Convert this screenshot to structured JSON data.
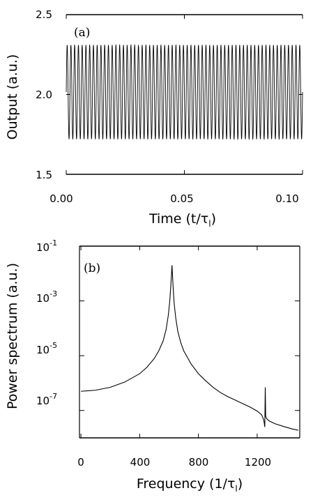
{
  "chart_data": [
    {
      "type": "line",
      "panel_label": "(a)",
      "xlabel_main": "Time (t/τ",
      "xlabel_sub": "l",
      "xlabel_close": ")",
      "ylabel": "Output (a.u.)",
      "xlim": [
        0.0,
        0.1
      ],
      "ylim": [
        1.5,
        2.5
      ],
      "x_ticks": [
        0.0,
        0.05,
        0.1
      ],
      "x_tick_labels": [
        "0.00",
        "0.05",
        "0.10"
      ],
      "y_ticks": [
        1.5,
        2.0,
        2.5
      ],
      "y_tick_labels": [
        "1.5",
        "2.0",
        "2.5"
      ],
      "grid": false,
      "series": [
        {
          "description_of_shape": "sustained periodic oscillation",
          "oscillation_min": 1.72,
          "oscillation_max": 2.31,
          "cycles_in_window": 63,
          "x_range": [
            0.0,
            0.1
          ]
        }
      ]
    },
    {
      "type": "line",
      "panel_label": "(b)",
      "xlabel_main": "Frequency (1/τ",
      "xlabel_sub": "l",
      "xlabel_close": ")",
      "ylabel": "Power spectrum (a.u.)",
      "yscale": "log",
      "xlim": [
        -10,
        1490
      ],
      "ylim": [
        1e-08,
        0.1
      ],
      "x_ticks": [
        0,
        400,
        800,
        1200
      ],
      "x_tick_labels": [
        "0",
        "400",
        "800",
        "1200"
      ],
      "y_ticks": [
        0.1,
        0.001,
        1e-05,
        1e-07
      ],
      "y_tick_labels": [
        {
          "base": "10",
          "exp": "-1"
        },
        {
          "base": "10",
          "exp": "-3"
        },
        {
          "base": "10",
          "exp": "-5"
        },
        {
          "base": "10",
          "exp": "-7"
        }
      ],
      "grid": false,
      "peaks": [
        {
          "frequency": 620,
          "power": 0.02
        },
        {
          "frequency": 1255,
          "power": 7e-07
        }
      ],
      "series": [
        {
          "x": [
            0,
            100,
            200,
            300,
            400,
            450,
            500,
            530,
            560,
            580,
            595,
            605,
            612,
            617,
            620,
            623,
            628,
            635,
            645,
            660,
            680,
            700,
            750,
            800,
            850,
            900,
            950,
            1000,
            1050,
            1100,
            1150,
            1200,
            1230,
            1245,
            1252,
            1255,
            1258,
            1265,
            1280,
            1320,
            1380,
            1440,
            1480
          ],
          "y": [
            5e-07,
            5.5e-07,
            7e-07,
            1.1e-06,
            2.2e-06,
            3.8e-06,
            8e-06,
            1.5e-05,
            3.5e-05,
            9e-05,
            0.0003,
            0.001,
            0.0035,
            0.01,
            0.02,
            0.01,
            0.003,
            0.0008,
            0.00025,
            7.5e-05,
            3e-05,
            1.5e-05,
            5e-06,
            2.2e-06,
            1.2e-06,
            7e-07,
            4.5e-07,
            3.2e-07,
            2.4e-07,
            1.8e-07,
            1.35e-07,
            9.5e-08,
            7e-08,
            4.5e-08,
            2.5e-08,
            7e-07,
            6e-08,
            5e-08,
            4.2e-08,
            3.3e-08,
            2.6e-08,
            2.1e-08,
            1.9e-08
          ]
        }
      ]
    }
  ]
}
